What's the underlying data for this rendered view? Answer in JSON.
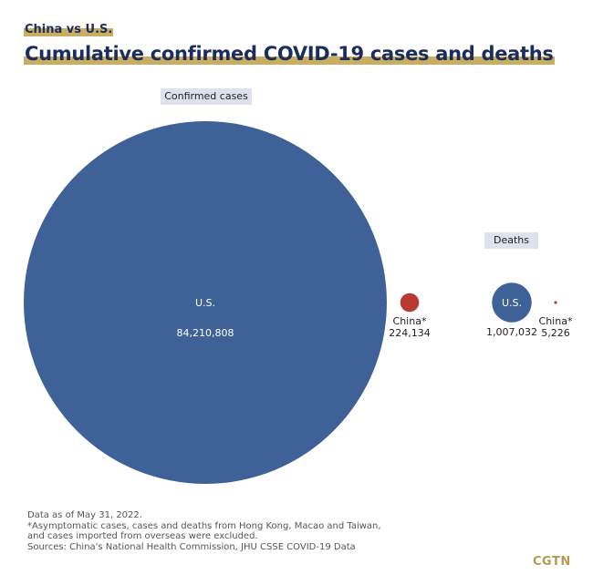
{
  "header": {
    "kicker": "China vs U.S.",
    "title": "Cumulative confirmed COVID-19 cases and deaths"
  },
  "colors": {
    "us": "#3e6297",
    "china": "#b83a32",
    "pill_bg": "#dde2ec",
    "highlight": "#c8ad63",
    "title": "#1b2d5a"
  },
  "chart_data": {
    "type": "bubble",
    "title": "Cumulative confirmed COVID-19 cases and deaths",
    "subtitle": "China vs U.S.",
    "groups": [
      {
        "name": "Confirmed cases",
        "items": [
          {
            "country": "U.S.",
            "label": "U.S.",
            "value": 84210808,
            "value_label": "84,210,808",
            "color": "#3e6297",
            "label_inside": true
          },
          {
            "country": "China",
            "label": "China*",
            "value": 224134,
            "value_label": "224,134",
            "color": "#b83a32",
            "label_inside": false
          }
        ]
      },
      {
        "name": "Deaths",
        "items": [
          {
            "country": "U.S.",
            "label": "U.S.",
            "value": 1007032,
            "value_label": "1,007,032",
            "color": "#3e6297",
            "label_inside": true
          },
          {
            "country": "China",
            "label": "China*",
            "value": 5226,
            "value_label": "5,226",
            "color": "#b83a32",
            "label_inside": false
          }
        ]
      }
    ],
    "size_encoding": "area proportional to value"
  },
  "footer": {
    "lines": [
      "Data as of May 31, 2022.",
      "*Asymptomatic cases, cases and deaths from Hong Kong, Macao and Taiwan,",
      "and cases imported from overseas were excluded.",
      "Sources: China's National Health Commission, JHU CSSE COVID-19 Data"
    ],
    "logo": "CGTN"
  }
}
